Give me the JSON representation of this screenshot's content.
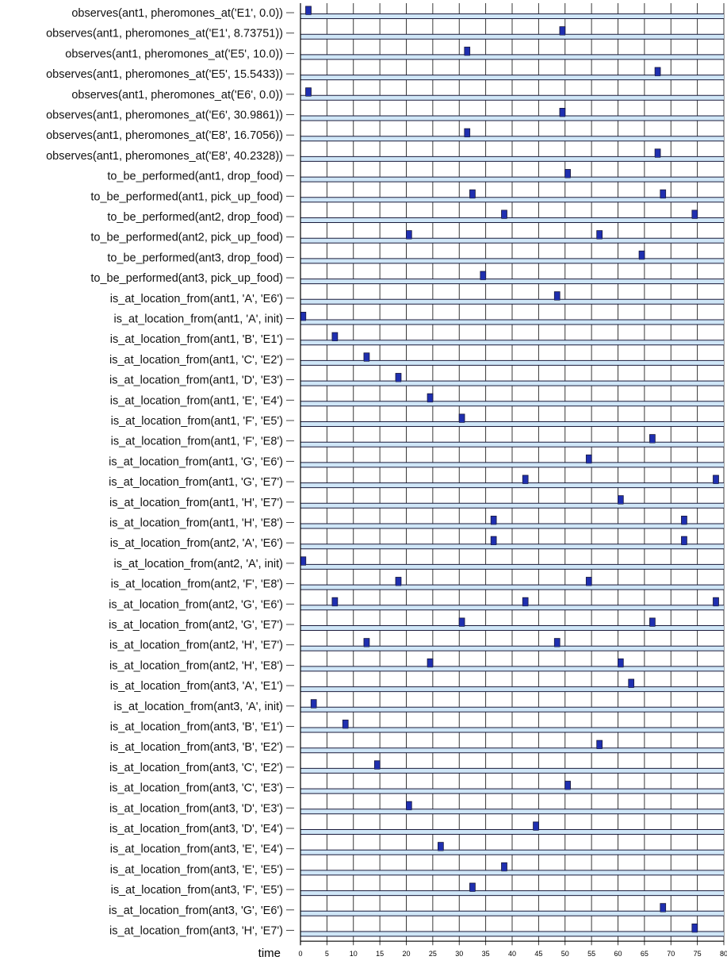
{
  "chart_data": {
    "type": "timeline",
    "xlabel": "time",
    "xlim": [
      0,
      80
    ],
    "xticks": [
      0,
      5,
      10,
      15,
      20,
      25,
      30,
      35,
      40,
      45,
      50,
      55,
      60,
      65,
      70,
      75,
      80
    ],
    "colors": {
      "bar_fill": "#cfe6f7",
      "bar_stroke": "#1a1a3a",
      "event_fill": "#1f2fb0",
      "grid": "#222222"
    },
    "rows": [
      {
        "label": "observes(ant1, pheromones_at('E1', 0.0))",
        "events": [
          1.5
        ]
      },
      {
        "label": "observes(ant1, pheromones_at('E1', 8.73751))",
        "events": [
          49.5
        ]
      },
      {
        "label": "observes(ant1, pheromones_at('E5', 10.0))",
        "events": [
          31.5
        ]
      },
      {
        "label": "observes(ant1, pheromones_at('E5', 15.5433))",
        "events": [
          67.5
        ]
      },
      {
        "label": "observes(ant1, pheromones_at('E6', 0.0))",
        "events": [
          1.5
        ]
      },
      {
        "label": "observes(ant1, pheromones_at('E6', 30.9861))",
        "events": [
          49.5
        ]
      },
      {
        "label": "observes(ant1, pheromones_at('E8', 16.7056))",
        "events": [
          31.5
        ]
      },
      {
        "label": "observes(ant1, pheromones_at('E8', 40.2328))",
        "events": [
          67.5
        ]
      },
      {
        "label": "to_be_performed(ant1, drop_food)",
        "events": [
          50.5
        ]
      },
      {
        "label": "to_be_performed(ant1, pick_up_food)",
        "events": [
          32.5,
          68.5
        ]
      },
      {
        "label": "to_be_performed(ant2, drop_food)",
        "events": [
          38.5,
          74.5
        ]
      },
      {
        "label": "to_be_performed(ant2, pick_up_food)",
        "events": [
          20.5,
          56.5
        ]
      },
      {
        "label": "to_be_performed(ant3, drop_food)",
        "events": [
          64.5
        ]
      },
      {
        "label": "to_be_performed(ant3, pick_up_food)",
        "events": [
          34.5
        ]
      },
      {
        "label": "is_at_location_from(ant1, 'A', 'E6')",
        "events": [
          48.5
        ]
      },
      {
        "label": "is_at_location_from(ant1, 'A', init)",
        "events": [
          0.5
        ]
      },
      {
        "label": "is_at_location_from(ant1, 'B', 'E1')",
        "events": [
          6.5
        ]
      },
      {
        "label": "is_at_location_from(ant1, 'C', 'E2')",
        "events": [
          12.5
        ]
      },
      {
        "label": "is_at_location_from(ant1, 'D', 'E3')",
        "events": [
          18.5
        ]
      },
      {
        "label": "is_at_location_from(ant1, 'E', 'E4')",
        "events": [
          24.5
        ]
      },
      {
        "label": "is_at_location_from(ant1, 'F', 'E5')",
        "events": [
          30.5
        ]
      },
      {
        "label": "is_at_location_from(ant1, 'F', 'E8')",
        "events": [
          66.5
        ]
      },
      {
        "label": "is_at_location_from(ant1, 'G', 'E6')",
        "events": [
          54.5
        ]
      },
      {
        "label": "is_at_location_from(ant1, 'G', 'E7')",
        "events": [
          42.5,
          78.5
        ]
      },
      {
        "label": "is_at_location_from(ant1, 'H', 'E7')",
        "events": [
          60.5
        ]
      },
      {
        "label": "is_at_location_from(ant1, 'H', 'E8')",
        "events": [
          36.5,
          72.5
        ]
      },
      {
        "label": "is_at_location_from(ant2, 'A', 'E6')",
        "events": [
          36.5,
          72.5
        ]
      },
      {
        "label": "is_at_location_from(ant2, 'A', init)",
        "events": [
          0.5
        ]
      },
      {
        "label": "is_at_location_from(ant2, 'F', 'E8')",
        "events": [
          18.5,
          54.5
        ]
      },
      {
        "label": "is_at_location_from(ant2, 'G', 'E6')",
        "events": [
          6.5,
          42.5,
          78.5
        ]
      },
      {
        "label": "is_at_location_from(ant2, 'G', 'E7')",
        "events": [
          30.5,
          66.5
        ]
      },
      {
        "label": "is_at_location_from(ant2, 'H', 'E7')",
        "events": [
          12.5,
          48.5
        ]
      },
      {
        "label": "is_at_location_from(ant2, 'H', 'E8')",
        "events": [
          24.5,
          60.5
        ]
      },
      {
        "label": "is_at_location_from(ant3, 'A', 'E1')",
        "events": [
          62.5
        ]
      },
      {
        "label": "is_at_location_from(ant3, 'A', init)",
        "events": [
          2.5
        ]
      },
      {
        "label": "is_at_location_from(ant3, 'B', 'E1')",
        "events": [
          8.5
        ]
      },
      {
        "label": "is_at_location_from(ant3, 'B', 'E2')",
        "events": [
          56.5
        ]
      },
      {
        "label": "is_at_location_from(ant3, 'C', 'E2')",
        "events": [
          14.5
        ]
      },
      {
        "label": "is_at_location_from(ant3, 'C', 'E3')",
        "events": [
          50.5
        ]
      },
      {
        "label": "is_at_location_from(ant3, 'D', 'E3')",
        "events": [
          20.5
        ]
      },
      {
        "label": "is_at_location_from(ant3, 'D', 'E4')",
        "events": [
          44.5
        ]
      },
      {
        "label": "is_at_location_from(ant3, 'E', 'E4')",
        "events": [
          26.5
        ]
      },
      {
        "label": "is_at_location_from(ant3, 'E', 'E5')",
        "events": [
          38.5
        ]
      },
      {
        "label": "is_at_location_from(ant3, 'F', 'E5')",
        "events": [
          32.5
        ]
      },
      {
        "label": "is_at_location_from(ant3, 'G', 'E6')",
        "events": [
          68.5
        ]
      },
      {
        "label": "is_at_location_from(ant3, 'H', 'E7')",
        "events": [
          74.5
        ]
      }
    ]
  }
}
